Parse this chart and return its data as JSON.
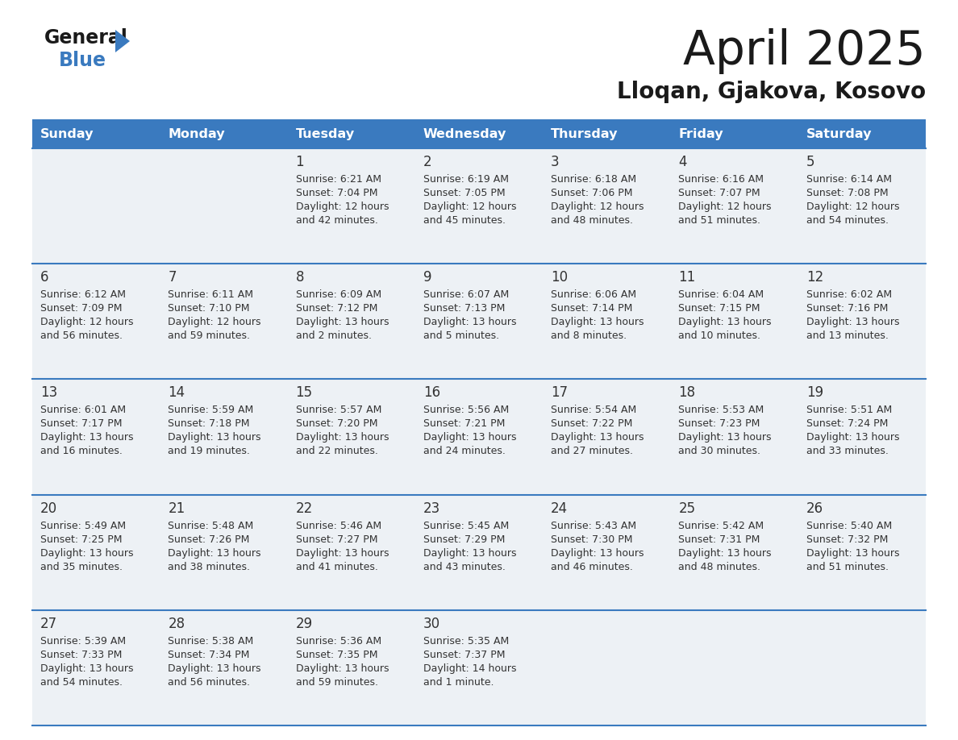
{
  "title": "April 2025",
  "subtitle": "Lloqan, Gjakova, Kosovo",
  "header_bg_color": "#3a7abf",
  "header_text_color": "#ffffff",
  "days_of_week": [
    "Sunday",
    "Monday",
    "Tuesday",
    "Wednesday",
    "Thursday",
    "Friday",
    "Saturday"
  ],
  "row_bg_color": "#edf1f5",
  "separator_color": "#3a7abf",
  "cell_text_color": "#333333",
  "title_color": "#1a1a1a",
  "calendar_data": [
    [
      {
        "day": "",
        "sunrise": "",
        "sunset": "",
        "daylight": ""
      },
      {
        "day": "",
        "sunrise": "",
        "sunset": "",
        "daylight": ""
      },
      {
        "day": "1",
        "sunrise": "Sunrise: 6:21 AM",
        "sunset": "Sunset: 7:04 PM",
        "daylight": "Daylight: 12 hours\nand 42 minutes."
      },
      {
        "day": "2",
        "sunrise": "Sunrise: 6:19 AM",
        "sunset": "Sunset: 7:05 PM",
        "daylight": "Daylight: 12 hours\nand 45 minutes."
      },
      {
        "day": "3",
        "sunrise": "Sunrise: 6:18 AM",
        "sunset": "Sunset: 7:06 PM",
        "daylight": "Daylight: 12 hours\nand 48 minutes."
      },
      {
        "day": "4",
        "sunrise": "Sunrise: 6:16 AM",
        "sunset": "Sunset: 7:07 PM",
        "daylight": "Daylight: 12 hours\nand 51 minutes."
      },
      {
        "day": "5",
        "sunrise": "Sunrise: 6:14 AM",
        "sunset": "Sunset: 7:08 PM",
        "daylight": "Daylight: 12 hours\nand 54 minutes."
      }
    ],
    [
      {
        "day": "6",
        "sunrise": "Sunrise: 6:12 AM",
        "sunset": "Sunset: 7:09 PM",
        "daylight": "Daylight: 12 hours\nand 56 minutes."
      },
      {
        "day": "7",
        "sunrise": "Sunrise: 6:11 AM",
        "sunset": "Sunset: 7:10 PM",
        "daylight": "Daylight: 12 hours\nand 59 minutes."
      },
      {
        "day": "8",
        "sunrise": "Sunrise: 6:09 AM",
        "sunset": "Sunset: 7:12 PM",
        "daylight": "Daylight: 13 hours\nand 2 minutes."
      },
      {
        "day": "9",
        "sunrise": "Sunrise: 6:07 AM",
        "sunset": "Sunset: 7:13 PM",
        "daylight": "Daylight: 13 hours\nand 5 minutes."
      },
      {
        "day": "10",
        "sunrise": "Sunrise: 6:06 AM",
        "sunset": "Sunset: 7:14 PM",
        "daylight": "Daylight: 13 hours\nand 8 minutes."
      },
      {
        "day": "11",
        "sunrise": "Sunrise: 6:04 AM",
        "sunset": "Sunset: 7:15 PM",
        "daylight": "Daylight: 13 hours\nand 10 minutes."
      },
      {
        "day": "12",
        "sunrise": "Sunrise: 6:02 AM",
        "sunset": "Sunset: 7:16 PM",
        "daylight": "Daylight: 13 hours\nand 13 minutes."
      }
    ],
    [
      {
        "day": "13",
        "sunrise": "Sunrise: 6:01 AM",
        "sunset": "Sunset: 7:17 PM",
        "daylight": "Daylight: 13 hours\nand 16 minutes."
      },
      {
        "day": "14",
        "sunrise": "Sunrise: 5:59 AM",
        "sunset": "Sunset: 7:18 PM",
        "daylight": "Daylight: 13 hours\nand 19 minutes."
      },
      {
        "day": "15",
        "sunrise": "Sunrise: 5:57 AM",
        "sunset": "Sunset: 7:20 PM",
        "daylight": "Daylight: 13 hours\nand 22 minutes."
      },
      {
        "day": "16",
        "sunrise": "Sunrise: 5:56 AM",
        "sunset": "Sunset: 7:21 PM",
        "daylight": "Daylight: 13 hours\nand 24 minutes."
      },
      {
        "day": "17",
        "sunrise": "Sunrise: 5:54 AM",
        "sunset": "Sunset: 7:22 PM",
        "daylight": "Daylight: 13 hours\nand 27 minutes."
      },
      {
        "day": "18",
        "sunrise": "Sunrise: 5:53 AM",
        "sunset": "Sunset: 7:23 PM",
        "daylight": "Daylight: 13 hours\nand 30 minutes."
      },
      {
        "day": "19",
        "sunrise": "Sunrise: 5:51 AM",
        "sunset": "Sunset: 7:24 PM",
        "daylight": "Daylight: 13 hours\nand 33 minutes."
      }
    ],
    [
      {
        "day": "20",
        "sunrise": "Sunrise: 5:49 AM",
        "sunset": "Sunset: 7:25 PM",
        "daylight": "Daylight: 13 hours\nand 35 minutes."
      },
      {
        "day": "21",
        "sunrise": "Sunrise: 5:48 AM",
        "sunset": "Sunset: 7:26 PM",
        "daylight": "Daylight: 13 hours\nand 38 minutes."
      },
      {
        "day": "22",
        "sunrise": "Sunrise: 5:46 AM",
        "sunset": "Sunset: 7:27 PM",
        "daylight": "Daylight: 13 hours\nand 41 minutes."
      },
      {
        "day": "23",
        "sunrise": "Sunrise: 5:45 AM",
        "sunset": "Sunset: 7:29 PM",
        "daylight": "Daylight: 13 hours\nand 43 minutes."
      },
      {
        "day": "24",
        "sunrise": "Sunrise: 5:43 AM",
        "sunset": "Sunset: 7:30 PM",
        "daylight": "Daylight: 13 hours\nand 46 minutes."
      },
      {
        "day": "25",
        "sunrise": "Sunrise: 5:42 AM",
        "sunset": "Sunset: 7:31 PM",
        "daylight": "Daylight: 13 hours\nand 48 minutes."
      },
      {
        "day": "26",
        "sunrise": "Sunrise: 5:40 AM",
        "sunset": "Sunset: 7:32 PM",
        "daylight": "Daylight: 13 hours\nand 51 minutes."
      }
    ],
    [
      {
        "day": "27",
        "sunrise": "Sunrise: 5:39 AM",
        "sunset": "Sunset: 7:33 PM",
        "daylight": "Daylight: 13 hours\nand 54 minutes."
      },
      {
        "day": "28",
        "sunrise": "Sunrise: 5:38 AM",
        "sunset": "Sunset: 7:34 PM",
        "daylight": "Daylight: 13 hours\nand 56 minutes."
      },
      {
        "day": "29",
        "sunrise": "Sunrise: 5:36 AM",
        "sunset": "Sunset: 7:35 PM",
        "daylight": "Daylight: 13 hours\nand 59 minutes."
      },
      {
        "day": "30",
        "sunrise": "Sunrise: 5:35 AM",
        "sunset": "Sunset: 7:37 PM",
        "daylight": "Daylight: 14 hours\nand 1 minute."
      },
      {
        "day": "",
        "sunrise": "",
        "sunset": "",
        "daylight": ""
      },
      {
        "day": "",
        "sunrise": "",
        "sunset": "",
        "daylight": ""
      },
      {
        "day": "",
        "sunrise": "",
        "sunset": "",
        "daylight": ""
      }
    ]
  ]
}
